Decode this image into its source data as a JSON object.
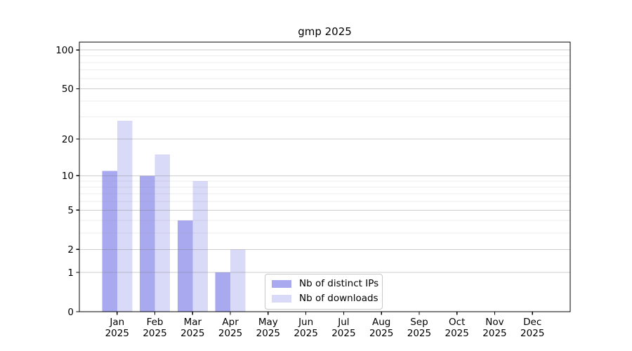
{
  "figure": {
    "title": "gmp 2025"
  },
  "legend": {
    "items": [
      {
        "label": "Nb of distinct IPs",
        "color": "#a9a9f0"
      },
      {
        "label": "Nb of downloads",
        "color": "#d9d9f8"
      }
    ]
  },
  "axes": {
    "months": [
      "Jan",
      "Feb",
      "Mar",
      "Apr",
      "May",
      "Jun",
      "Jul",
      "Aug",
      "Sep",
      "Oct",
      "Nov",
      "Dec"
    ],
    "year": "2025",
    "yticks": [
      0,
      1,
      2,
      5,
      10,
      20,
      50,
      100
    ],
    "yticks_minor": [
      3,
      4,
      6,
      7,
      8,
      9,
      30,
      40,
      60,
      70,
      80,
      90
    ]
  },
  "chart_data": {
    "type": "bar",
    "title": "gmp 2025",
    "categories": [
      "Jan 2025",
      "Feb 2025",
      "Mar 2025",
      "Apr 2025",
      "May 2025",
      "Jun 2025",
      "Jul 2025",
      "Aug 2025",
      "Sep 2025",
      "Oct 2025",
      "Nov 2025",
      "Dec 2025"
    ],
    "series": [
      {
        "name": "Nb of distinct IPs",
        "color": "#a9a9f0",
        "values": [
          11,
          10,
          4,
          1,
          0,
          0,
          0,
          0,
          0,
          0,
          0,
          0
        ]
      },
      {
        "name": "Nb of downloads",
        "color": "#d9d9f8",
        "values": [
          28,
          15,
          9,
          2,
          0,
          0,
          0,
          0,
          0,
          0,
          0,
          0
        ]
      }
    ],
    "yscale": "log1p",
    "ylim": [
      0,
      114
    ],
    "yticks": [
      0,
      1,
      2,
      5,
      10,
      20,
      50,
      100
    ],
    "yticks_minor": [
      3,
      4,
      6,
      7,
      8,
      9,
      30,
      40,
      60,
      70,
      80,
      90
    ],
    "xlabel": "",
    "ylabel": "",
    "grid": "horizontal major+minor, drawn above bars",
    "legend_position": "lower center inside plot"
  },
  "colors": {
    "grid_major": "rgba(115,115,115,0.35)",
    "grid_minor": "rgba(115,115,115,0.13)",
    "axis": "#000000",
    "text": "#000000",
    "background": "#ffffff"
  }
}
